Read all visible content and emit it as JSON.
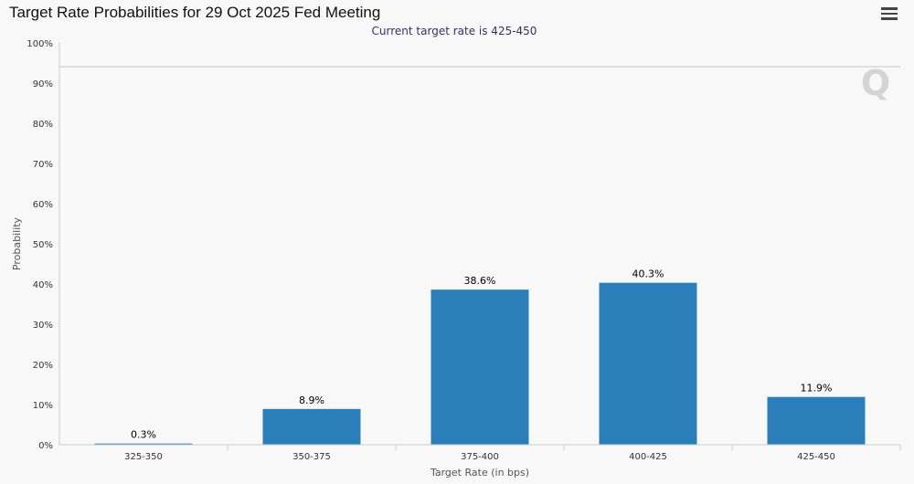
{
  "chart_title": "Target Rate Probabilities for 29 Oct 2025 Fed Meeting",
  "menu_icon": "hamburger-menu-icon",
  "chart_data": {
    "type": "bar",
    "title": "Target Rate Probabilities for 29 Oct 2025 Fed Meeting",
    "subtitle": "Current target rate is 425-450",
    "xlabel": "Target Rate (in bps)",
    "ylabel": "Probability",
    "categories": [
      "325-350",
      "350-375",
      "375-400",
      "400-425",
      "425-450"
    ],
    "values": [
      0.3,
      8.9,
      38.6,
      40.3,
      11.9
    ],
    "data_labels": [
      "0.3%",
      "8.9%",
      "38.6%",
      "40.3%",
      "11.9%"
    ],
    "ylim": [
      0,
      100
    ],
    "yticks": [
      "0%",
      "10%",
      "20%",
      "30%",
      "40%",
      "50%",
      "60%",
      "70%",
      "80%",
      "90%",
      "100%"
    ],
    "bar_color": "#2a7fba",
    "grid": false,
    "legend": "none"
  }
}
